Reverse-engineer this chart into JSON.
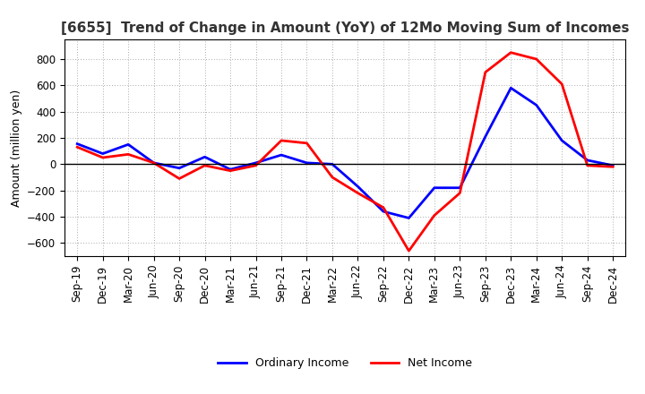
{
  "title": "[6655]  Trend of Change in Amount (YoY) of 12Mo Moving Sum of Incomes",
  "ylabel": "Amount (million yen)",
  "labels": [
    "Sep-19",
    "Dec-19",
    "Mar-20",
    "Jun-20",
    "Sep-20",
    "Dec-20",
    "Mar-21",
    "Jun-21",
    "Sep-21",
    "Dec-21",
    "Mar-22",
    "Jun-22",
    "Sep-22",
    "Dec-22",
    "Mar-23",
    "Jun-23",
    "Sep-23",
    "Dec-23",
    "Mar-24",
    "Jun-24",
    "Sep-24",
    "Dec-24"
  ],
  "ordinary_income": [
    155,
    80,
    150,
    10,
    -30,
    55,
    -40,
    10,
    70,
    10,
    0,
    -170,
    -360,
    -410,
    -180,
    -180,
    210,
    580,
    450,
    180,
    30,
    -10
  ],
  "net_income": [
    130,
    50,
    75,
    10,
    -110,
    -10,
    -50,
    -10,
    180,
    160,
    -100,
    -220,
    -330,
    -660,
    -390,
    -220,
    700,
    850,
    800,
    610,
    -10,
    -20
  ],
  "ordinary_color": "#0000ff",
  "net_color": "#ff0000",
  "ylim": [
    -700,
    950
  ],
  "yticks": [
    -600,
    -400,
    -200,
    0,
    200,
    400,
    600,
    800
  ],
  "background_color": "#ffffff",
  "grid_color": "#aaaaaa",
  "legend_ordinary": "Ordinary Income",
  "legend_net": "Net Income",
  "line_width": 2.0,
  "title_color": "#333333",
  "title_fontsize": 11,
  "tick_fontsize": 8.5,
  "ylabel_fontsize": 9
}
